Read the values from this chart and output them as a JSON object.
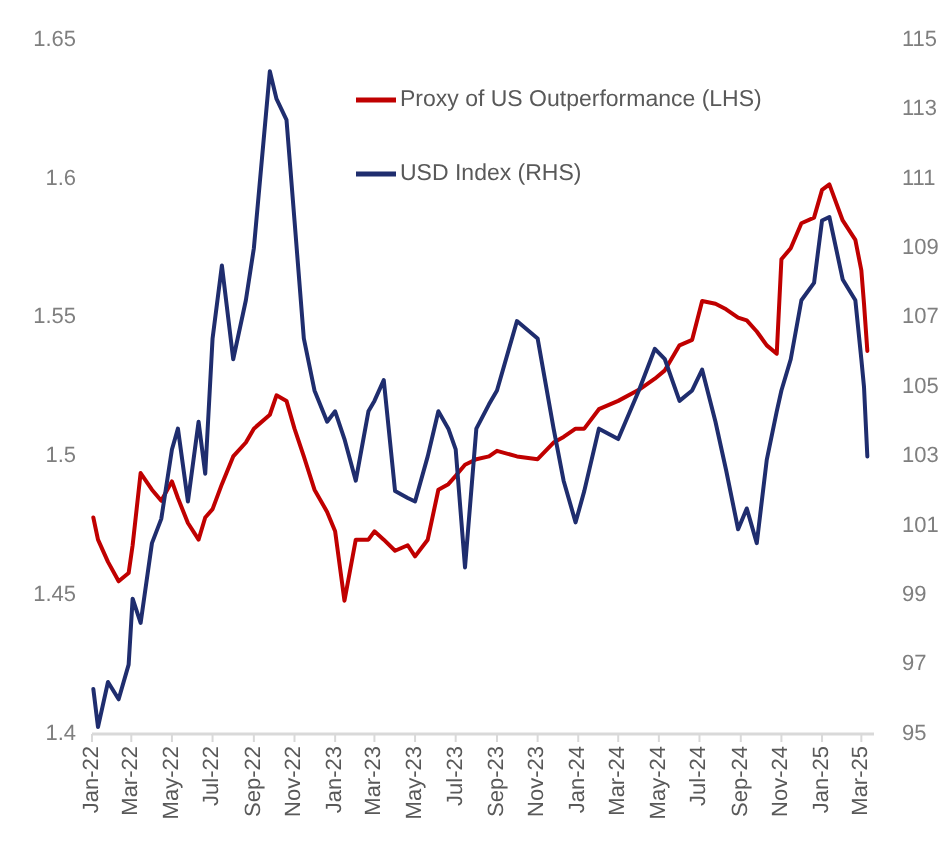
{
  "chart_data": {
    "type": "line",
    "x": [
      "2022-01-03",
      "2022-01-10",
      "2022-01-25",
      "2022-02-10",
      "2022-02-25",
      "2022-03-03",
      "2022-03-15",
      "2022-04-01",
      "2022-04-15",
      "2022-05-01",
      "2022-05-10",
      "2022-05-25",
      "2022-06-10",
      "2022-06-20",
      "2022-07-01",
      "2022-07-15",
      "2022-08-01",
      "2022-08-20",
      "2022-09-01",
      "2022-09-25",
      "2022-10-05",
      "2022-10-20",
      "2022-11-01",
      "2022-11-15",
      "2022-12-01",
      "2022-12-20",
      "2023-01-01",
      "2023-01-15",
      "2023-02-01",
      "2023-02-20",
      "2023-03-01",
      "2023-03-15",
      "2023-04-01",
      "2023-04-20",
      "2023-05-01",
      "2023-05-20",
      "2023-06-05",
      "2023-06-20",
      "2023-07-01",
      "2023-07-15",
      "2023-08-01",
      "2023-08-20",
      "2023-09-01",
      "2023-10-01",
      "2023-11-01",
      "2023-11-25",
      "2023-12-10",
      "2023-12-28",
      "2024-01-10",
      "2024-02-01",
      "2024-03-01",
      "2024-04-01",
      "2024-04-25",
      "2024-05-10",
      "2024-06-01",
      "2024-06-20",
      "2024-07-05",
      "2024-07-25",
      "2024-08-10",
      "2024-08-28",
      "2024-09-10",
      "2024-09-25",
      "2024-10-10",
      "2024-10-25",
      "2024-11-01",
      "2024-11-15",
      "2024-12-01",
      "2024-12-20",
      "2025-01-01",
      "2025-01-12",
      "2025-02-01",
      "2025-02-20",
      "2025-03-01",
      "2025-03-05",
      "2025-03-10"
    ],
    "series": [
      {
        "name": "Proxy of US Outperformance (LHS)",
        "color": "#c00000",
        "values": [
          1.478,
          1.47,
          1.462,
          1.455,
          1.458,
          1.468,
          1.494,
          1.488,
          1.484,
          1.491,
          1.485,
          1.476,
          1.47,
          1.478,
          1.481,
          1.49,
          1.5,
          1.505,
          1.51,
          1.515,
          1.522,
          1.52,
          1.51,
          1.5,
          1.488,
          1.48,
          1.473,
          1.448,
          1.47,
          1.47,
          1.473,
          1.47,
          1.466,
          1.468,
          1.464,
          1.47,
          1.488,
          1.49,
          1.493,
          1.497,
          1.499,
          1.5,
          1.502,
          1.5,
          1.499,
          1.505,
          1.507,
          1.51,
          1.51,
          1.517,
          1.52,
          1.524,
          1.528,
          1.531,
          1.54,
          1.542,
          1.556,
          1.555,
          1.553,
          1.55,
          1.549,
          1.545,
          1.54,
          1.537,
          1.571,
          1.575,
          1.584,
          1.586,
          1.596,
          1.598,
          1.585,
          1.578,
          1.567,
          1.555,
          1.538
        ]
      },
      {
        "name": "USD Index (RHS)",
        "color": "#1f2d6e",
        "axis": "y2",
        "values": [
          96.3,
          95.2,
          96.5,
          96.0,
          97.0,
          98.9,
          98.2,
          100.5,
          101.2,
          103.2,
          103.8,
          101.7,
          104.0,
          102.5,
          106.4,
          108.5,
          105.8,
          107.5,
          109.0,
          114.1,
          113.3,
          112.7,
          109.8,
          106.4,
          104.9,
          104.0,
          104.3,
          103.5,
          102.3,
          104.3,
          104.6,
          105.2,
          102.0,
          101.8,
          101.7,
          103.0,
          104.3,
          103.8,
          103.2,
          99.8,
          103.8,
          104.5,
          104.9,
          106.9,
          106.4,
          103.8,
          102.3,
          101.1,
          102.0,
          103.8,
          103.5,
          104.9,
          106.1,
          105.8,
          104.6,
          104.9,
          105.5,
          104.0,
          102.6,
          100.9,
          101.5,
          100.5,
          102.9,
          104.3,
          104.9,
          105.8,
          107.5,
          108.0,
          109.8,
          109.9,
          108.1,
          107.5,
          105.8,
          105.0,
          103.0
        ]
      }
    ],
    "xlim": [
      "2022-01-01",
      "2025-03-20"
    ],
    "xticks": [
      {
        "value": "2022-01-01",
        "label": "Jan-22"
      },
      {
        "value": "2022-03-01",
        "label": "Mar-22"
      },
      {
        "value": "2022-05-01",
        "label": "May-22"
      },
      {
        "value": "2022-07-01",
        "label": "Jul-22"
      },
      {
        "value": "2022-09-01",
        "label": "Sep-22"
      },
      {
        "value": "2022-11-01",
        "label": "Nov-22"
      },
      {
        "value": "2023-01-01",
        "label": "Jan-23"
      },
      {
        "value": "2023-03-01",
        "label": "Mar-23"
      },
      {
        "value": "2023-05-01",
        "label": "May-23"
      },
      {
        "value": "2023-07-01",
        "label": "Jul-23"
      },
      {
        "value": "2023-09-01",
        "label": "Sep-23"
      },
      {
        "value": "2023-11-01",
        "label": "Nov-23"
      },
      {
        "value": "2024-01-01",
        "label": "Jan-24"
      },
      {
        "value": "2024-03-01",
        "label": "Mar-24"
      },
      {
        "value": "2024-05-01",
        "label": "May-24"
      },
      {
        "value": "2024-07-01",
        "label": "Jul-24"
      },
      {
        "value": "2024-09-01",
        "label": "Sep-24"
      },
      {
        "value": "2024-11-01",
        "label": "Nov-24"
      },
      {
        "value": "2025-01-01",
        "label": "Jan-25"
      },
      {
        "value": "2025-03-01",
        "label": "Mar-25"
      }
    ],
    "ylim": [
      1.4,
      1.65
    ],
    "yticks": [
      1.4,
      1.45,
      1.5,
      1.55,
      1.6,
      1.65
    ],
    "y2lim": [
      95,
      115
    ],
    "y2ticks": [
      95,
      97,
      99,
      101,
      103,
      105,
      107,
      109,
      111,
      113,
      115
    ],
    "grid": false,
    "legend": "top right",
    "marker": "none",
    "line_style": "solid"
  }
}
